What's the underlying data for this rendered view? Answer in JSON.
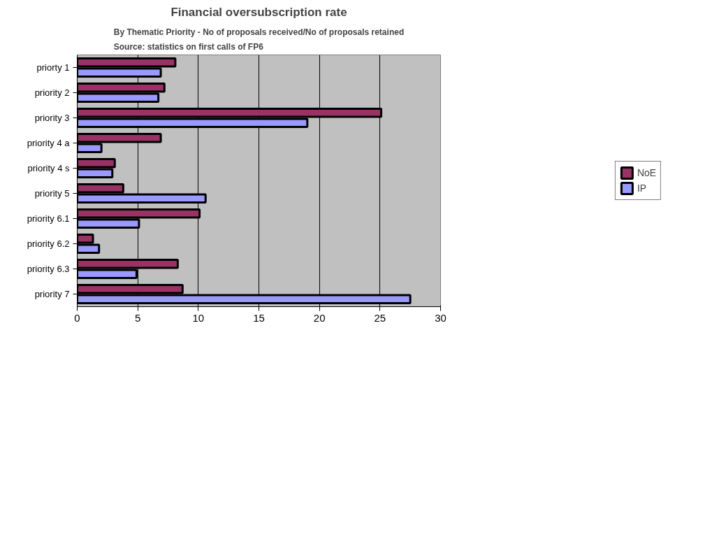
{
  "chart_data": {
    "type": "bar",
    "orientation": "horizontal",
    "title": "Financial oversubscription rate",
    "subtitle": "By Thematic Priority - No of proposals received/No of proposals retained\nSource: statistics on first calls of FP6",
    "categories": [
      "priorty 1",
      "priority 2",
      "priority 3",
      "priority 4 a",
      "priority 4 s",
      "priority 5",
      "priority 6.1",
      "priority 6.2",
      "priority 6.3",
      "priority 7"
    ],
    "series": [
      {
        "name": "NoE",
        "color": "#993366",
        "values": [
          8.1,
          7.2,
          25.1,
          6.9,
          3.1,
          3.8,
          10.1,
          1.3,
          8.3,
          8.7
        ]
      },
      {
        "name": "IP",
        "color": "#9999ff",
        "values": [
          6.9,
          6.7,
          19.0,
          2.0,
          2.9,
          10.6,
          5.1,
          1.8,
          4.9,
          27.5
        ]
      }
    ],
    "xlim": [
      0,
      30
    ],
    "xticks": [
      0,
      5,
      10,
      15,
      20,
      25,
      30
    ],
    "grid": "x",
    "legend": "right"
  }
}
